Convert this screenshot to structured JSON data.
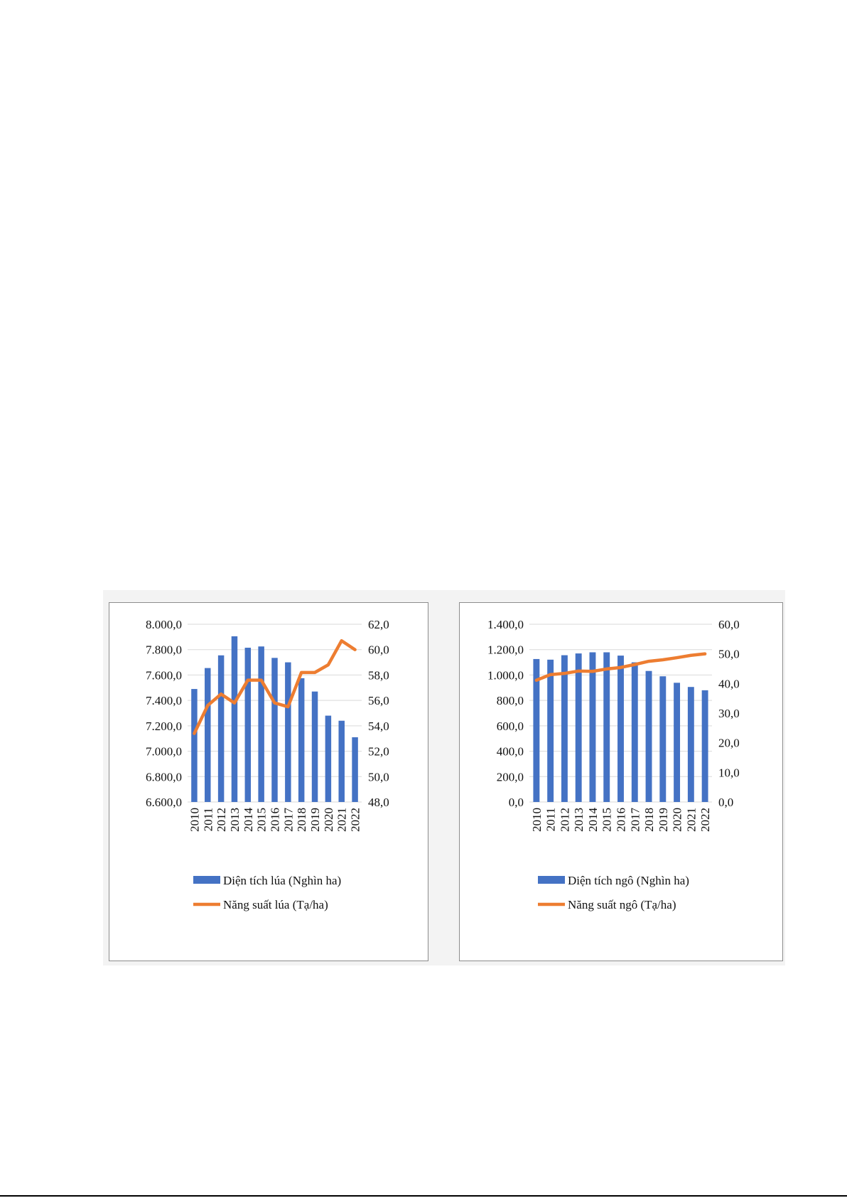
{
  "charts": {
    "colors": {
      "bar": "#4472C4",
      "line": "#ED7D31",
      "grid": "#d9d9d9"
    }
  },
  "chart_data": [
    {
      "type": "bar",
      "categories": [
        "2010",
        "2011",
        "2012",
        "2013",
        "2014",
        "2015",
        "2016",
        "2017",
        "2018",
        "2019",
        "2020",
        "2021",
        "2022"
      ],
      "series": [
        {
          "name": "Diện tích lúa (Nghìn ha)",
          "type": "bar",
          "axis": "left",
          "values": [
            7490,
            7655,
            7755,
            7905,
            7815,
            7825,
            7735,
            7700,
            7575,
            7470,
            7280,
            7240,
            7110
          ]
        },
        {
          "name": "Năng suất lúa (Tạ/ha)",
          "type": "line",
          "axis": "right",
          "values": [
            53.4,
            55.6,
            56.5,
            55.8,
            57.6,
            57.6,
            55.8,
            55.5,
            58.2,
            58.2,
            58.8,
            60.7,
            60.0
          ]
        }
      ],
      "ylim_left": [
        6600,
        8000
      ],
      "ylim_right": [
        48,
        62
      ],
      "yticks_left": [
        "6.600,0",
        "6.800,0",
        "7.000,0",
        "7.200,0",
        "7.400,0",
        "7.600,0",
        "7.800,0",
        "8.000,0"
      ],
      "yticks_right": [
        "48,0",
        "50,0",
        "52,0",
        "54,0",
        "56,0",
        "58,0",
        "60,0",
        "62,0"
      ],
      "grid": true,
      "legend": "bottom"
    },
    {
      "type": "bar",
      "categories": [
        "2010",
        "2011",
        "2012",
        "2013",
        "2014",
        "2015",
        "2016",
        "2017",
        "2018",
        "2019",
        "2020",
        "2021",
        "2022"
      ],
      "series": [
        {
          "name": "Diện tích ngô (Nghìn ha)",
          "type": "bar",
          "axis": "left",
          "values": [
            1126,
            1121,
            1156,
            1170,
            1179,
            1179,
            1153,
            1100,
            1032,
            990,
            939,
            906,
            880
          ]
        },
        {
          "name": "Năng suất ngô (Tạ/ha)",
          "type": "line",
          "axis": "right",
          "values": [
            41.1,
            43.0,
            43.4,
            44.2,
            44.1,
            44.9,
            45.4,
            46.4,
            47.5,
            48.0,
            48.7,
            49.5,
            50.0
          ]
        }
      ],
      "ylim_left": [
        0,
        1400
      ],
      "ylim_right": [
        0,
        60
      ],
      "yticks_left": [
        "0,0",
        "200,0",
        "400,0",
        "600,0",
        "800,0",
        "1.000,0",
        "1.200,0",
        "1.400,0"
      ],
      "yticks_right": [
        "0,0",
        "10,0",
        "20,0",
        "30,0",
        "40,0",
        "50,0",
        "60,0"
      ],
      "grid": true,
      "legend": "bottom"
    }
  ]
}
